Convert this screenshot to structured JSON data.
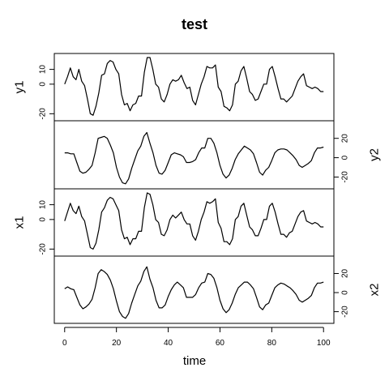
{
  "chart_data": {
    "type": "line",
    "title": "test",
    "xlabel": "time",
    "xlim": [
      -4,
      104
    ],
    "xticks": [
      0,
      20,
      40,
      60,
      80,
      100
    ],
    "panels": [
      {
        "name": "y1",
        "axis_side": "left",
        "ylim": [
          -22,
          18
        ],
        "yticks": [
          -20,
          0,
          10
        ],
        "values": [
          0,
          5,
          11,
          5,
          3,
          10,
          2,
          -1,
          -10,
          -20,
          -21,
          -15,
          -6,
          6,
          7,
          14,
          16,
          15,
          10,
          7,
          -7,
          -14,
          -13,
          -18,
          -14,
          -13,
          -8,
          -8,
          8,
          18,
          18,
          10,
          0,
          -2,
          -10,
          -12,
          -7,
          0,
          3,
          2,
          3,
          6,
          1,
          -3,
          -2,
          -11,
          -14,
          -7,
          0,
          5,
          12,
          11,
          11,
          13,
          -2,
          -5,
          -15,
          -16,
          -18,
          -14,
          0,
          2,
          9,
          12,
          4,
          -5,
          -7,
          -11,
          -10,
          -5,
          0,
          0,
          10,
          12,
          5,
          -3,
          -10,
          -10,
          -12,
          -10,
          -8,
          -3,
          2,
          5,
          7,
          -1,
          -2,
          -3,
          -2,
          -3,
          -5,
          -5
        ]
      },
      {
        "name": "y2",
        "axis_side": "right",
        "ylim": [
          -28,
          34
        ],
        "yticks": [
          -20,
          0,
          20
        ],
        "values": [
          5,
          5,
          4,
          4,
          -5,
          -14,
          -16,
          -15,
          -12,
          -8,
          5,
          20,
          21,
          22,
          20,
          13,
          5,
          -10,
          -20,
          -26,
          -27,
          -22,
          -11,
          -2,
          7,
          12,
          22,
          26,
          15,
          5,
          -8,
          -16,
          -17,
          -13,
          -5,
          3,
          5,
          4,
          3,
          1,
          -5,
          -5,
          -4,
          -2,
          5,
          10,
          10,
          20,
          20,
          15,
          5,
          -8,
          -17,
          -21,
          -18,
          -11,
          -2,
          4,
          8,
          12,
          10,
          8,
          4,
          -5,
          -15,
          -18,
          -13,
          -10,
          -3,
          5,
          8,
          9,
          9,
          8,
          5,
          2,
          -2,
          -8,
          -10,
          -8,
          -6,
          -3,
          5,
          10,
          10,
          11
        ]
      },
      {
        "name": "x1",
        "axis_side": "left",
        "ylim": [
          -22,
          18
        ],
        "yticks": [
          -20,
          0,
          10
        ],
        "values": [
          -1,
          5,
          11,
          6,
          4,
          9,
          2,
          -1,
          -10,
          -19,
          -20,
          -16,
          -7,
          5,
          8,
          13,
          15,
          14,
          10,
          6,
          -7,
          -13,
          -12,
          -17,
          -13,
          -13,
          -8,
          -8,
          8,
          18,
          17,
          10,
          0,
          -2,
          -10,
          -11,
          -7,
          0,
          3,
          1,
          3,
          5,
          0,
          -3,
          -3,
          -11,
          -14,
          -8,
          0,
          5,
          12,
          11,
          12,
          14,
          -2,
          -6,
          -15,
          -15,
          -17,
          -13,
          0,
          2,
          9,
          11,
          3,
          -5,
          -7,
          -11,
          -11,
          -6,
          0,
          0,
          9,
          11,
          5,
          -3,
          -10,
          -10,
          -12,
          -9,
          -8,
          -3,
          2,
          5,
          6,
          -1,
          -2,
          -3,
          -2,
          -3,
          -5,
          -5
        ]
      },
      {
        "name": "x2",
        "axis_side": "right",
        "ylim": [
          -28,
          34
        ],
        "yticks": [
          -20,
          0,
          20
        ],
        "values": [
          4,
          6,
          4,
          3,
          -5,
          -13,
          -17,
          -15,
          -12,
          -7,
          5,
          20,
          24,
          22,
          19,
          13,
          4,
          -9,
          -20,
          -25,
          -27,
          -22,
          -11,
          -2,
          7,
          12,
          22,
          27,
          14,
          5,
          -8,
          -16,
          -16,
          -13,
          -4,
          3,
          8,
          11,
          8,
          5,
          -5,
          -5,
          -5,
          -2,
          5,
          10,
          11,
          20,
          19,
          15,
          5,
          -8,
          -17,
          -21,
          -18,
          -11,
          -2,
          5,
          8,
          11,
          11,
          8,
          4,
          -5,
          -15,
          -18,
          -13,
          -11,
          -3,
          5,
          8,
          10,
          9,
          7,
          5,
          2,
          -2,
          -8,
          -10,
          -8,
          -6,
          -3,
          5,
          10,
          10,
          11
        ]
      }
    ]
  }
}
